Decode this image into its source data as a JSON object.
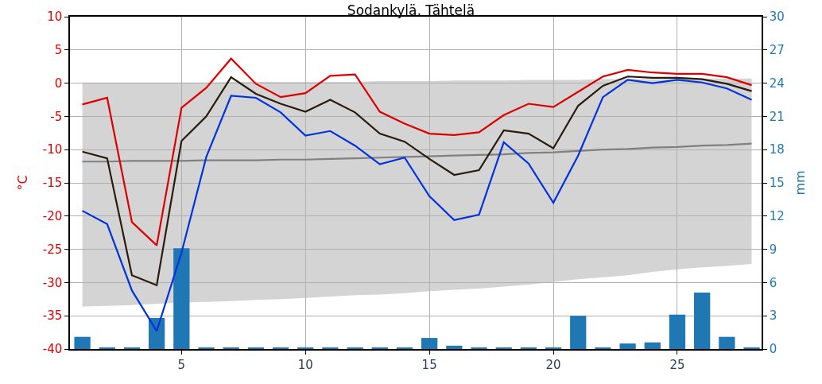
{
  "chart_data": {
    "type": "line",
    "title": "Sodankylä, Tähtelä",
    "ylabel": "°C",
    "y2label": "mm",
    "x": [
      1,
      2,
      3,
      4,
      5,
      6,
      7,
      8,
      9,
      10,
      11,
      12,
      13,
      14,
      15,
      16,
      17,
      18,
      19,
      20,
      21,
      22,
      23,
      24,
      25,
      26,
      27,
      28
    ],
    "series": [
      {
        "color": "#808080",
        "values": [
          -11.8,
          -11.8,
          -11.7,
          -11.7,
          -11.7,
          -11.6,
          -11.6,
          -11.6,
          -11.5,
          -11.5,
          -11.4,
          -11.3,
          -11.2,
          -11.1,
          -11.0,
          -10.9,
          -10.8,
          -10.7,
          -10.5,
          -10.4,
          -10.2,
          -10.0,
          -9.9,
          -9.7,
          -9.6,
          -9.4,
          -9.3,
          -9.1
        ],
        "lower": [
          -33.6,
          -33.5,
          -33.4,
          -33.2,
          -33.0,
          -32.9,
          -32.8,
          -32.6,
          -32.5,
          -32.3,
          -32.1,
          -31.9,
          -31.8,
          -31.6,
          -31.3,
          -31.1,
          -30.9,
          -30.6,
          -30.3,
          -29.9,
          -29.5,
          -29.2,
          -28.9,
          -28.4,
          -28.0,
          -27.7,
          -27.5,
          -27.2
        ],
        "upper": [
          0.1,
          0.1,
          0.1,
          0.1,
          0.1,
          0.1,
          0.2,
          0.2,
          0.2,
          0.2,
          0.2,
          0.2,
          0.3,
          0.3,
          0.3,
          0.4,
          0.4,
          0.4,
          0.5,
          0.5,
          0.5,
          0.6,
          0.6,
          0.6,
          0.6,
          0.7,
          0.7,
          0.7
        ]
      },
      {
        "type": "bar",
        "axis": "y2",
        "color": "#1f77b4",
        "values": [
          1.1,
          0.15,
          0.15,
          2.8,
          9.1,
          0.15,
          0.15,
          0.15,
          0.15,
          0.15,
          0.15,
          0.15,
          0.15,
          0.15,
          1.0,
          0.3,
          0.15,
          0.15,
          0.15,
          0.15,
          3.0,
          0.15,
          0.5,
          0.6,
          3.1,
          5.1,
          1.1,
          0.15
        ]
      },
      {
        "color": "#dd0000",
        "values": [
          -3.2,
          -2.2,
          -20.9,
          -24.4,
          -3.7,
          -0.7,
          3.7,
          -0.1,
          -2.1,
          -1.5,
          1.1,
          1.3,
          -4.3,
          -6.1,
          -7.6,
          -7.8,
          -7.4,
          -4.8,
          -3.1,
          -3.6,
          -1.3,
          1.0,
          2.0,
          1.6,
          1.4,
          1.4,
          0.9,
          -0.3
        ]
      },
      {
        "color": "#2b1a0e",
        "values": [
          -10.3,
          -11.3,
          -28.9,
          -30.4,
          -8.7,
          -5.0,
          0.9,
          -1.6,
          -3.1,
          -4.3,
          -2.5,
          -4.4,
          -7.6,
          -8.8,
          -11.4,
          -13.8,
          -13.1,
          -7.1,
          -7.6,
          -9.8,
          -3.4,
          -0.4,
          1.0,
          0.8,
          0.8,
          0.6,
          -0.1,
          -1.2
        ]
      },
      {
        "color": "#0033dd",
        "values": [
          -19.2,
          -21.2,
          -31.2,
          -37.3,
          -25.5,
          -11.1,
          -1.9,
          -2.2,
          -4.4,
          -7.9,
          -7.2,
          -9.4,
          -12.2,
          -11.2,
          -17.0,
          -20.6,
          -19.8,
          -8.9,
          -12.1,
          -18.0,
          -10.9,
          -2.1,
          0.5,
          0.0,
          0.5,
          0.1,
          -0.8,
          -2.5
        ]
      }
    ],
    "xlim": [
      0.5,
      28.4
    ],
    "xticks": [
      5,
      10,
      15,
      20,
      25
    ],
    "ylim": [
      -40,
      10
    ],
    "yticks": [
      -40,
      -35,
      -30,
      -25,
      -20,
      -15,
      -10,
      -5,
      0,
      5,
      10
    ],
    "y2lim": [
      0,
      30
    ],
    "y2ticks": [
      0,
      3,
      6,
      9,
      12,
      15,
      18,
      21,
      24,
      27,
      30
    ],
    "grid": true
  }
}
